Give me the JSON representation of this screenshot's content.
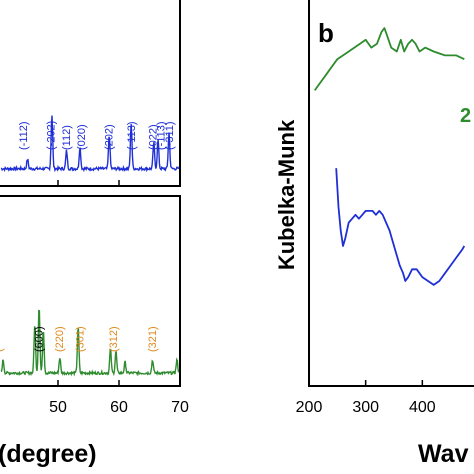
{
  "chart_data": [
    {
      "panel": "a",
      "type": "line",
      "xlabel": "(degree)",
      "ylabel": "",
      "xlim": [
        40,
        70
      ],
      "xticks": [
        40,
        50,
        60,
        70
      ],
      "xtick_labels": [
        "",
        "50",
        "60",
        "70"
      ],
      "grid": false,
      "series": [
        {
          "color": "#1f2fd6",
          "sub_panel": "top",
          "peaks": [
            {
              "x": 45.0,
              "h": 0.08
            },
            {
              "x": 49.0,
              "h": 0.45
            },
            {
              "x": 51.4,
              "h": 0.15
            },
            {
              "x": 53.6,
              "h": 0.18
            },
            {
              "x": 58.4,
              "h": 0.28
            },
            {
              "x": 62.0,
              "h": 0.38
            },
            {
              "x": 65.7,
              "h": 0.22
            },
            {
              "x": 66.4,
              "h": 0.24
            },
            {
              "x": 68.2,
              "h": 0.3
            }
          ],
          "annotations": [
            {
              "text": "(-112)",
              "x": 44.3,
              "color": "#1f2fd6"
            },
            {
              "text": "(-202)",
              "x": 48.8,
              "color": "#1f2fd6"
            },
            {
              "text": "(112)",
              "x": 51.3,
              "color": "#1f2fd6"
            },
            {
              "text": "(020)",
              "x": 53.8,
              "color": "#1f2fd6"
            },
            {
              "text": "(202)",
              "x": 58.3,
              "color": "#1f2fd6"
            },
            {
              "text": "(-113)",
              "x": 62.0,
              "color": "#1f2fd6"
            },
            {
              "text": "(022)",
              "x": 65.5,
              "color": "#1f2fd6"
            },
            {
              "text": "(-113)",
              "x": 66.8,
              "color": "#1f2fd6"
            },
            {
              "text": "(-311)",
              "x": 68.2,
              "color": "#1f2fd6"
            }
          ]
        },
        {
          "color": "#2e8b2e",
          "sub_panel": "bottom",
          "peaks": [
            {
              "x": 41.0,
              "h": 0.12
            },
            {
              "x": 46.2,
              "h": 0.45
            },
            {
              "x": 46.9,
              "h": 0.62
            },
            {
              "x": 47.6,
              "h": 0.4
            },
            {
              "x": 50.3,
              "h": 0.14
            },
            {
              "x": 53.3,
              "h": 0.42
            },
            {
              "x": 58.6,
              "h": 0.22
            },
            {
              "x": 59.5,
              "h": 0.2
            },
            {
              "x": 61.0,
              "h": 0.1
            },
            {
              "x": 65.5,
              "h": 0.12
            },
            {
              "x": 69.5,
              "h": 0.12
            }
          ],
          "annotations": [
            {
              "text": "(",
              "x": 40.2,
              "color": "#e08a1e"
            },
            {
              "text": "(600)",
              "x": 46.8,
              "color": "#000000"
            },
            {
              "text": "(220)",
              "x": 50.2,
              "color": "#e08a1e"
            },
            {
              "text": "(301)",
              "x": 53.5,
              "color": "#e08a1e"
            },
            {
              "text": "(312)",
              "x": 59.0,
              "color": "#e08a1e"
            },
            {
              "text": "(321)",
              "x": 65.4,
              "color": "#e08a1e"
            }
          ]
        }
      ]
    },
    {
      "panel": "b",
      "type": "line",
      "panel_label": "b",
      "xlabel": "Wav",
      "ylabel": "Kubelka-Munk",
      "xlim": [
        200,
        500
      ],
      "xticks": [
        200,
        300,
        400
      ],
      "xtick_labels": [
        "200",
        "300",
        "400"
      ],
      "grid": false,
      "series": [
        {
          "name": "2",
          "color": "#2e8b2e",
          "x": [
            210,
            230,
            250,
            270,
            290,
            300,
            310,
            320,
            328,
            333,
            338,
            345,
            355,
            362,
            368,
            375,
            382,
            388,
            395,
            405,
            420,
            440,
            460,
            474
          ],
          "y": [
            0.76,
            0.8,
            0.84,
            0.86,
            0.88,
            0.89,
            0.87,
            0.88,
            0.91,
            0.92,
            0.9,
            0.87,
            0.86,
            0.89,
            0.86,
            0.88,
            0.89,
            0.88,
            0.86,
            0.87,
            0.86,
            0.85,
            0.85,
            0.84
          ]
        },
        {
          "color": "#1f2fd6",
          "x": [
            248,
            252,
            256,
            260,
            264,
            270,
            276,
            282,
            288,
            294,
            300,
            306,
            312,
            318,
            324,
            330,
            336,
            342,
            348,
            354,
            360,
            366,
            370,
            375,
            382,
            390,
            400,
            410,
            420,
            430,
            440,
            450,
            460,
            470,
            474
          ],
          "y": [
            0.56,
            0.46,
            0.4,
            0.36,
            0.38,
            0.42,
            0.43,
            0.44,
            0.43,
            0.44,
            0.45,
            0.45,
            0.45,
            0.44,
            0.45,
            0.44,
            0.42,
            0.4,
            0.37,
            0.34,
            0.31,
            0.29,
            0.27,
            0.28,
            0.3,
            0.3,
            0.28,
            0.27,
            0.26,
            0.27,
            0.29,
            0.31,
            0.33,
            0.35,
            0.36
          ]
        }
      ]
    }
  ]
}
